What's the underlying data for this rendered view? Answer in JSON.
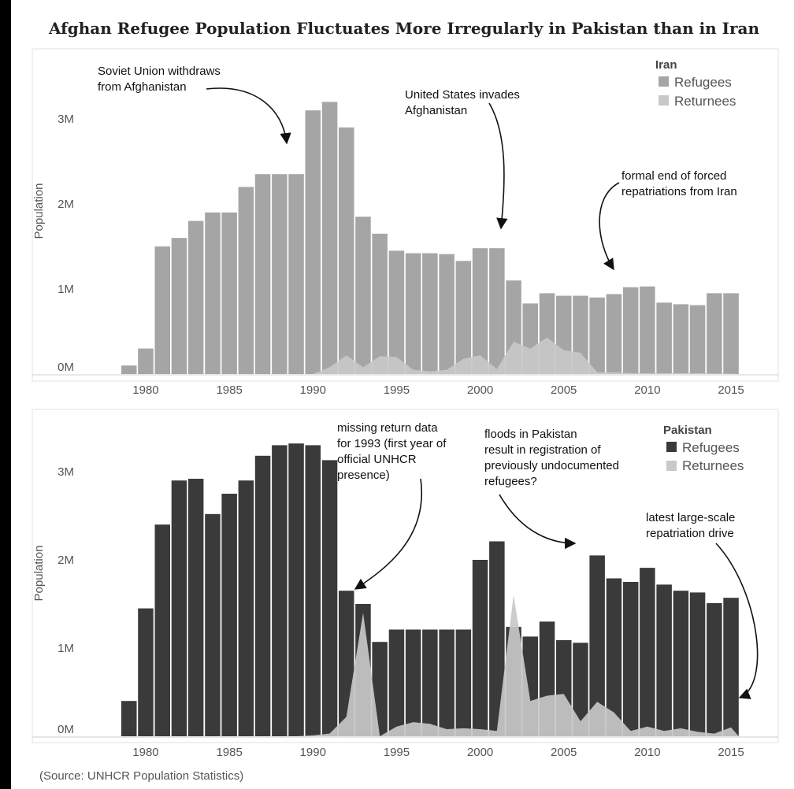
{
  "title": "Afghan Refugee Population Fluctuates More Irregularly in Pakistan than in Iran",
  "source": "(Source: UNHCR Population Statistics)",
  "chart_data": [
    {
      "type": "bar",
      "name": "Iran",
      "ylabel": "Population",
      "ylim": [
        0,
        3400000
      ],
      "y_ticks": [
        {
          "v": 0,
          "label": "0M"
        },
        {
          "v": 1000000,
          "label": "1M"
        },
        {
          "v": 2000000,
          "label": "2M"
        },
        {
          "v": 3000000,
          "label": "3M"
        }
      ],
      "x_ticks": [
        1980,
        1985,
        1990,
        1995,
        2000,
        2005,
        2010,
        2015
      ],
      "legend": {
        "title": "Iran",
        "position": "top-right",
        "items": [
          {
            "label": "Refugees",
            "color": "#a5a5a5"
          },
          {
            "label": "Returnees",
            "color": "#c8c8c8"
          }
        ]
      },
      "years": [
        1979,
        1980,
        1981,
        1982,
        1983,
        1984,
        1985,
        1986,
        1987,
        1988,
        1989,
        1990,
        1991,
        1992,
        1993,
        1994,
        1995,
        1996,
        1997,
        1998,
        1999,
        2000,
        2001,
        2002,
        2003,
        2004,
        2005,
        2006,
        2007,
        2008,
        2009,
        2010,
        2011,
        2012,
        2013,
        2014,
        2015
      ],
      "series": [
        {
          "name": "Refugees",
          "type": "bar",
          "color": "#a5a5a5",
          "values": [
            100000,
            300000,
            1500000,
            1600000,
            1800000,
            1900000,
            1900000,
            2200000,
            2350000,
            2350000,
            2350000,
            3100000,
            3200000,
            2900000,
            1850000,
            1650000,
            1450000,
            1420000,
            1420000,
            1410000,
            1330000,
            1480000,
            1480000,
            1100000,
            830000,
            950000,
            920000,
            920000,
            900000,
            940000,
            1020000,
            1030000,
            840000,
            820000,
            810000,
            950000,
            950000
          ]
        },
        {
          "name": "Returnees",
          "type": "area",
          "color": "#c8c8c8",
          "values": [
            0,
            0,
            0,
            0,
            0,
            0,
            0,
            0,
            0,
            0,
            0,
            0,
            80000,
            220000,
            80000,
            210000,
            200000,
            50000,
            30000,
            50000,
            180000,
            220000,
            60000,
            380000,
            300000,
            430000,
            280000,
            250000,
            20000,
            20000,
            10000,
            10000,
            10000,
            10000,
            10000,
            5000,
            5000
          ]
        }
      ],
      "annotations": [
        {
          "lines": [
            "Soviet Union withdraws",
            "from Afghanistan"
          ]
        },
        {
          "lines": [
            "United States invades",
            "Afghanistan"
          ]
        },
        {
          "lines": [
            "formal end of forced",
            "repatriations from Iran"
          ]
        }
      ]
    },
    {
      "type": "bar",
      "name": "Pakistan",
      "ylabel": "Population",
      "ylim": [
        0,
        3400000
      ],
      "y_ticks": [
        {
          "v": 0,
          "label": "0M"
        },
        {
          "v": 1000000,
          "label": "1M"
        },
        {
          "v": 2000000,
          "label": "2M"
        },
        {
          "v": 3000000,
          "label": "3M"
        }
      ],
      "x_ticks": [
        1980,
        1985,
        1990,
        1995,
        2000,
        2005,
        2010,
        2015
      ],
      "legend": {
        "title": "Pakistan",
        "position": "top-right",
        "items": [
          {
            "label": "Refugees",
            "color": "#3a3a3a"
          },
          {
            "label": "Returnees",
            "color": "#c8c8c8"
          }
        ]
      },
      "years": [
        1979,
        1980,
        1981,
        1982,
        1983,
        1984,
        1985,
        1986,
        1987,
        1988,
        1989,
        1990,
        1991,
        1992,
        1993,
        1994,
        1995,
        1996,
        1997,
        1998,
        1999,
        2000,
        2001,
        2002,
        2003,
        2004,
        2005,
        2006,
        2007,
        2008,
        2009,
        2010,
        2011,
        2012,
        2013,
        2014,
        2015
      ],
      "series": [
        {
          "name": "Refugees",
          "type": "bar",
          "color": "#3a3a3a",
          "values": [
            400000,
            1450000,
            2400000,
            2900000,
            2920000,
            2520000,
            2750000,
            2900000,
            3180000,
            3300000,
            3320000,
            3300000,
            3130000,
            1650000,
            1500000,
            1070000,
            1210000,
            1210000,
            1210000,
            1210000,
            1210000,
            2000000,
            2210000,
            1240000,
            1130000,
            1300000,
            1090000,
            1060000,
            2050000,
            1790000,
            1750000,
            1910000,
            1720000,
            1650000,
            1630000,
            1510000,
            1570000
          ]
        },
        {
          "name": "Returnees",
          "type": "area",
          "color": "#c8c8c8",
          "values": [
            0,
            0,
            0,
            0,
            0,
            0,
            0,
            0,
            0,
            0,
            0,
            10000,
            30000,
            220000,
            1400000,
            0,
            110000,
            160000,
            140000,
            80000,
            90000,
            80000,
            60000,
            1600000,
            400000,
            460000,
            480000,
            170000,
            390000,
            270000,
            60000,
            110000,
            60000,
            90000,
            50000,
            30000,
            100000
          ]
        }
      ],
      "annotations": [
        {
          "lines": [
            "missing return data",
            "for 1993 (first year of",
            "official UNHCR",
            "presence)"
          ]
        },
        {
          "lines": [
            "floods in Pakistan",
            "result in registration of",
            "previously undocumented",
            "refugees?"
          ]
        },
        {
          "lines": [
            "latest large-scale",
            "repatriation drive"
          ]
        }
      ]
    }
  ]
}
